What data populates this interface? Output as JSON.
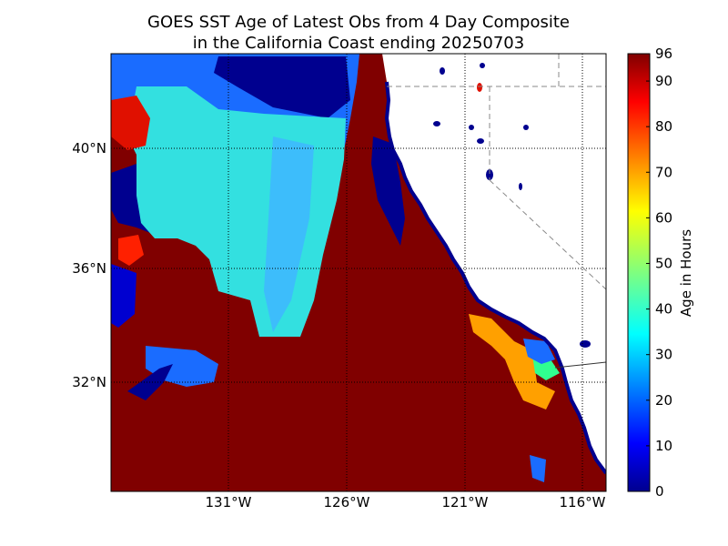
{
  "title": {
    "line1": "GOES SST Age of Latest Obs from 4 Day Composite",
    "line2": "in the California Coast ending 20250703"
  },
  "map": {
    "lon_labels": [
      "131°W",
      "126°W",
      "121°W",
      "116°W"
    ],
    "lat_labels": [
      "40°N",
      "36°N",
      "32°N"
    ]
  },
  "colorbar": {
    "label": "Age in Hours",
    "ticks": [
      "0",
      "10",
      "20",
      "30",
      "40",
      "50",
      "60",
      "70",
      "80",
      "90",
      "96"
    ],
    "colormap": "jet",
    "min": 0,
    "max": 96
  },
  "colors": {
    "ocean_old": "#800000",
    "land": "#ffffff",
    "cyan": "#33e0e0",
    "blue": "#1a6cff",
    "navy": "#00008f",
    "orange": "#ffa000"
  }
}
